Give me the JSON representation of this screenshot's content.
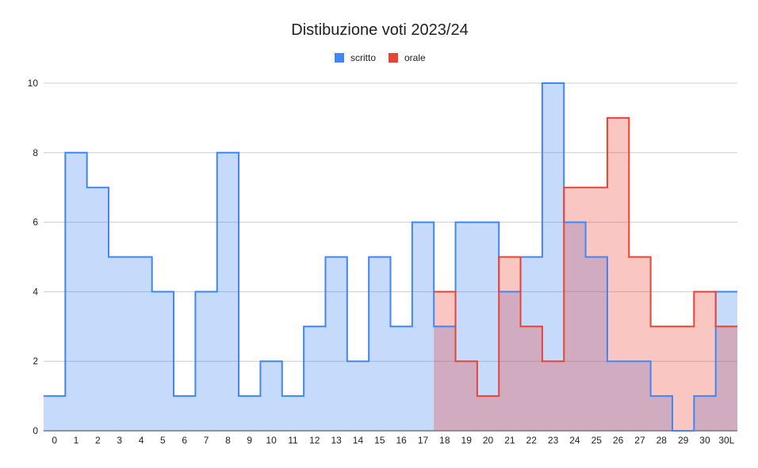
{
  "chart_data": {
    "type": "area",
    "title": "Distibuzione voti 2023/24",
    "xlabel": "",
    "ylabel": "",
    "categories": [
      "0",
      "1",
      "2",
      "3",
      "4",
      "5",
      "6",
      "7",
      "8",
      "9",
      "10",
      "11",
      "12",
      "13",
      "14",
      "15",
      "16",
      "17",
      "18",
      "19",
      "20",
      "21",
      "22",
      "23",
      "24",
      "25",
      "26",
      "27",
      "28",
      "29",
      "30",
      "30L"
    ],
    "ylim": [
      0,
      10
    ],
    "yticks": [
      "0",
      "2",
      "4",
      "6",
      "8",
      "10"
    ],
    "grid": true,
    "legend_position": "top",
    "step": true,
    "series": [
      {
        "name": "scritto",
        "color": "#4285f4",
        "fill": "#c5d9fb",
        "values": [
          1,
          8,
          7,
          5,
          5,
          4,
          1,
          4,
          8,
          1,
          2,
          1,
          3,
          5,
          2,
          5,
          3,
          6,
          3,
          6,
          6,
          4,
          5,
          10,
          6,
          5,
          2,
          2,
          1,
          0,
          1,
          4
        ]
      },
      {
        "name": "orale",
        "color": "#ea4335",
        "fill": "#f8c3bf",
        "values": [
          null,
          null,
          null,
          null,
          null,
          null,
          null,
          null,
          null,
          null,
          null,
          null,
          null,
          null,
          null,
          null,
          null,
          null,
          4,
          2,
          1,
          5,
          3,
          2,
          7,
          7,
          9,
          5,
          3,
          3,
          4,
          3
        ]
      }
    ]
  }
}
